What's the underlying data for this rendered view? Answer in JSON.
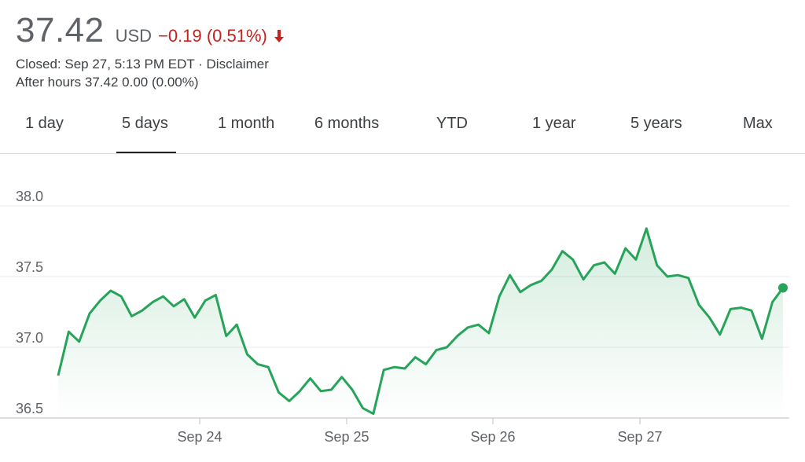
{
  "quote": {
    "price": "37.42",
    "currency": "USD",
    "change": "−0.19 (0.51%)",
    "closed": "Closed: Sep 27, 5:13 PM EDT · Disclaimer",
    "after_hours_label": "After hours",
    "after_hours_price": "37.42",
    "after_hours_change": "0.00 (0.00%)"
  },
  "tabs": [
    "1 day",
    "5 days",
    "1 month",
    "6 months",
    "YTD",
    "1 year",
    "5 years",
    "Max"
  ],
  "selected_tab": "5 days",
  "colors": {
    "line": "#27a35a",
    "down": "#c5221f",
    "grid": "#e8eaed"
  },
  "chart_data": {
    "type": "area",
    "x_ticks": [
      "Sep 24",
      "Sep 25",
      "Sep 26",
      "Sep 27"
    ],
    "y_ticks": [
      "38.0",
      "37.5",
      "37.0",
      "36.5"
    ],
    "ylim": [
      36.5,
      38.0
    ],
    "grid": "horizontal",
    "series": [
      {
        "values": [
          36.8,
          37.11,
          37.04,
          37.24,
          37.33,
          37.4,
          37.36,
          37.22,
          37.26,
          37.32,
          37.36,
          37.29,
          37.34,
          37.21,
          37.33,
          37.37,
          37.08,
          37.16,
          36.95,
          36.88,
          36.86,
          36.68,
          36.62,
          36.69,
          36.78,
          36.69,
          36.7,
          36.79,
          36.7,
          36.57,
          36.53,
          36.84,
          36.86,
          36.85,
          36.93,
          36.88,
          36.98,
          37.0,
          37.08,
          37.14,
          37.16,
          37.1,
          37.36,
          37.51,
          37.39,
          37.44,
          37.47,
          37.55,
          37.68,
          37.62,
          37.48,
          37.58,
          37.6,
          37.52,
          37.7,
          37.62,
          37.84,
          37.58,
          37.5,
          37.51,
          37.49,
          37.3,
          37.21,
          37.09,
          37.27,
          37.28,
          37.26,
          37.06,
          37.32,
          37.42
        ]
      }
    ],
    "last_value": 37.42
  }
}
